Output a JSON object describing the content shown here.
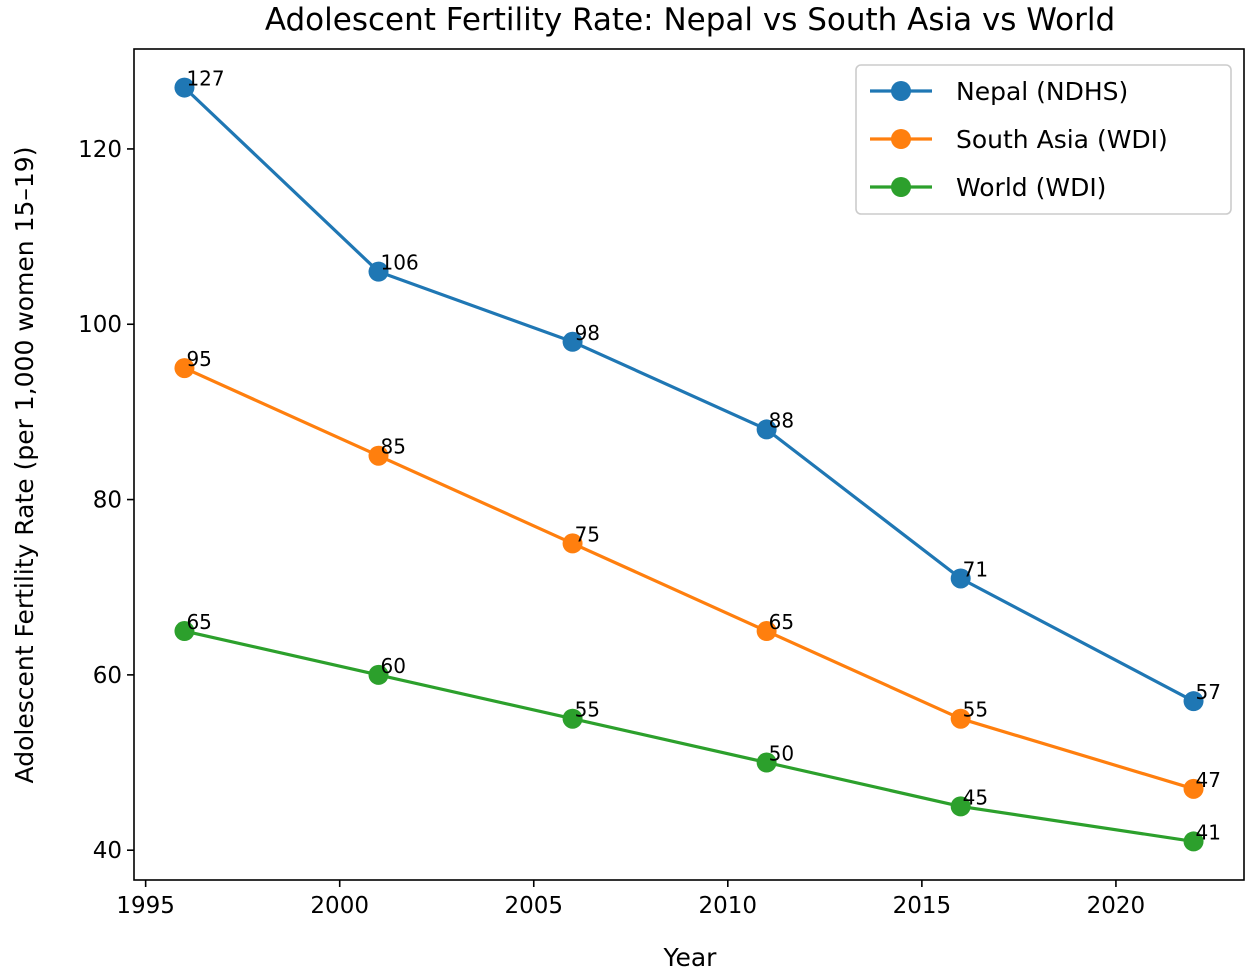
{
  "chart_data": {
    "type": "line",
    "title": "Adolescent Fertility Rate: Nepal vs South Asia vs World",
    "xlabel": "Year",
    "ylabel": "Adolescent Fertility Rate (per 1,000 women 15–19)",
    "x": [
      1996,
      2001,
      2006,
      2011,
      2016,
      2022
    ],
    "xlim": [
      1994.7,
      2023.3
    ],
    "ylim": [
      36.6,
      131.4
    ],
    "xticks": [
      1995,
      2000,
      2005,
      2010,
      2015,
      2020
    ],
    "yticks": [
      40,
      60,
      80,
      100,
      120
    ],
    "grid": false,
    "legend_position": "top-right",
    "series": [
      {
        "name": "Nepal (NDHS)",
        "color": "#1f77b4",
        "values": [
          127,
          106,
          98,
          88,
          71,
          57
        ]
      },
      {
        "name": "South Asia (WDI)",
        "color": "#ff7f0e",
        "values": [
          95,
          85,
          75,
          65,
          55,
          47
        ]
      },
      {
        "name": "World (WDI)",
        "color": "#2ca02c",
        "values": [
          65,
          60,
          55,
          50,
          45,
          41
        ]
      }
    ]
  }
}
